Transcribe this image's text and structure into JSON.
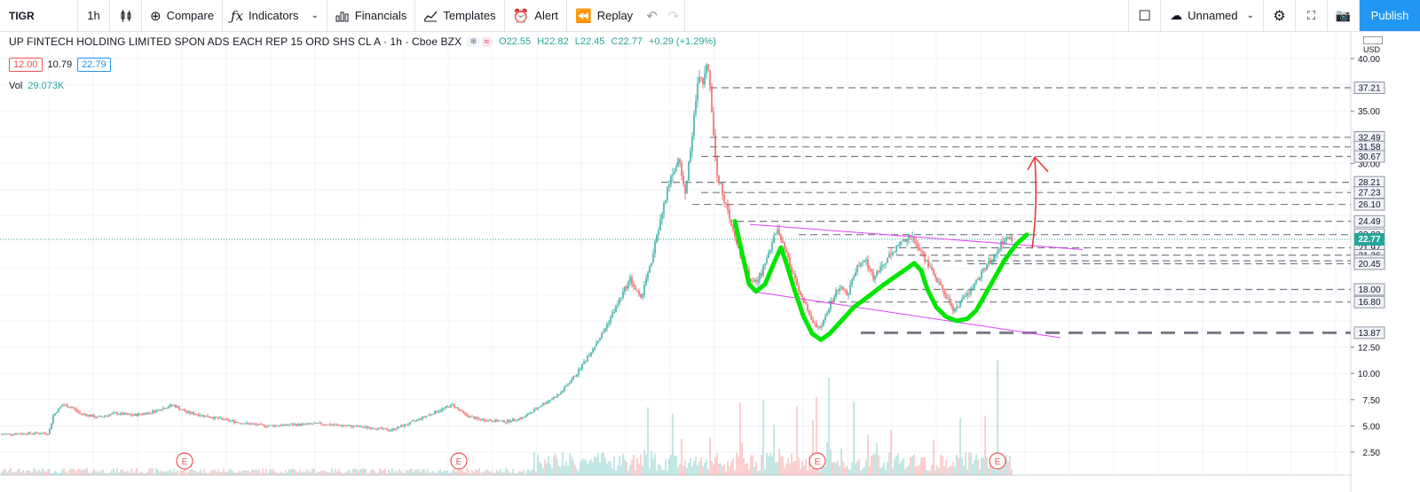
{
  "toolbar": {
    "symbol": "TIGR",
    "interval": "1h",
    "compare": "Compare",
    "indicators": "Indicators",
    "financials": "Financials",
    "templates": "Templates",
    "alert": "Alert",
    "replay": "Replay",
    "layout_name": "Unnamed",
    "publish": "Publish"
  },
  "legend": {
    "title": "UP FINTECH HOLDING LIMITED SPON ADS EACH REP 15 ORD SHS CL A · 1h · Cboe BZX",
    "open": "O22.55",
    "high": "H22.82",
    "low": "L22.45",
    "close": "C22.77",
    "change": "+0.29 (+1.29%)",
    "bid": "12.00",
    "spread": "10.79",
    "ask": "22.79",
    "vol_label": "Vol",
    "vol_value": "29.073K"
  },
  "axis": {
    "currency": "USD",
    "current_price": "22.77",
    "ticks": [
      "40.00",
      "35.00",
      "30.00",
      "12.50",
      "10.00",
      "7.50",
      "5.00",
      "2.50"
    ],
    "level_labels": [
      "37.21",
      "32.49",
      "31.58",
      "30.67",
      "28.21",
      "27.23",
      "26.10",
      "24.49",
      "23.22",
      "21.97",
      "21.26",
      "20.72",
      "20.45",
      "18.00",
      "16.80",
      "13.87"
    ]
  },
  "chart_data": {
    "type": "candlestick",
    "price_range": [
      1.5,
      42
    ],
    "horizontal_levels": [
      37.21,
      32.49,
      31.58,
      30.67,
      28.21,
      27.23,
      26.1,
      24.49,
      23.22,
      21.97,
      21.26,
      20.72,
      20.45,
      18.0,
      16.8,
      13.87
    ],
    "earnings_markers": 4,
    "colors": {
      "up": "#26a69a",
      "down": "#ef5350",
      "level": "#787b86",
      "channel": "#e040fb",
      "pattern": "#00e600",
      "arrow": "#e53935"
    }
  }
}
